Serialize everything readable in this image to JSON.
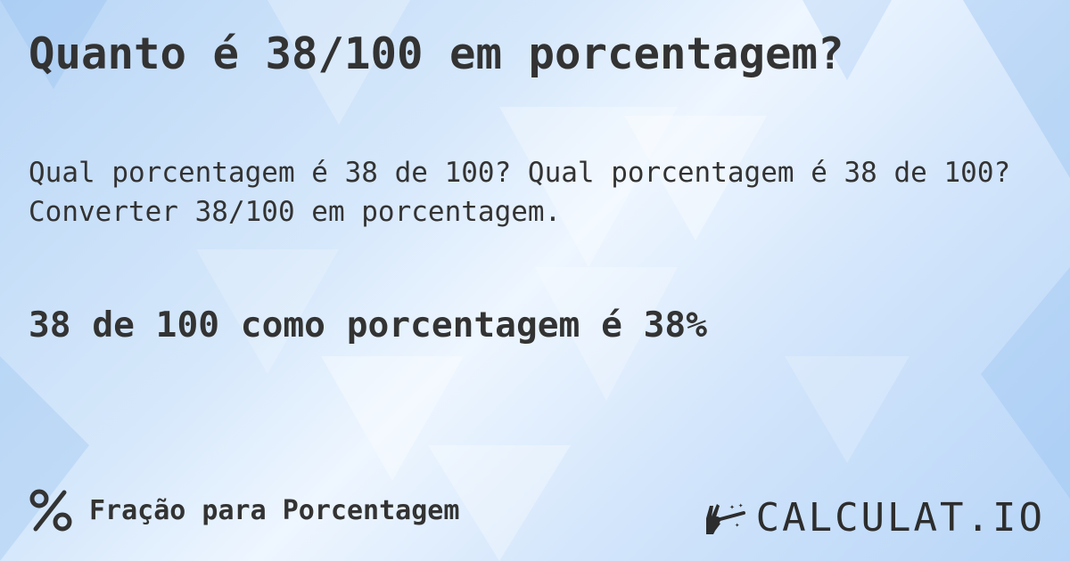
{
  "title": "Quanto é 38/100 em porcentagem?",
  "description": {
    "line1": "Qual porcentagem é 38 de 100? Qual porcentagem é 38 de 100?",
    "line2": "Converter 38/100 em porcentagem."
  },
  "result": "38 de 100 como porcentagem é 38%",
  "footer": {
    "category_icon": "percent-icon",
    "category": "Fração para Porcentagem",
    "logo_icon": "magic-hand-wand-icon",
    "logo": "CALCULAT.IO"
  },
  "colors": {
    "text": "#333333",
    "background": "#cfe3fa"
  }
}
